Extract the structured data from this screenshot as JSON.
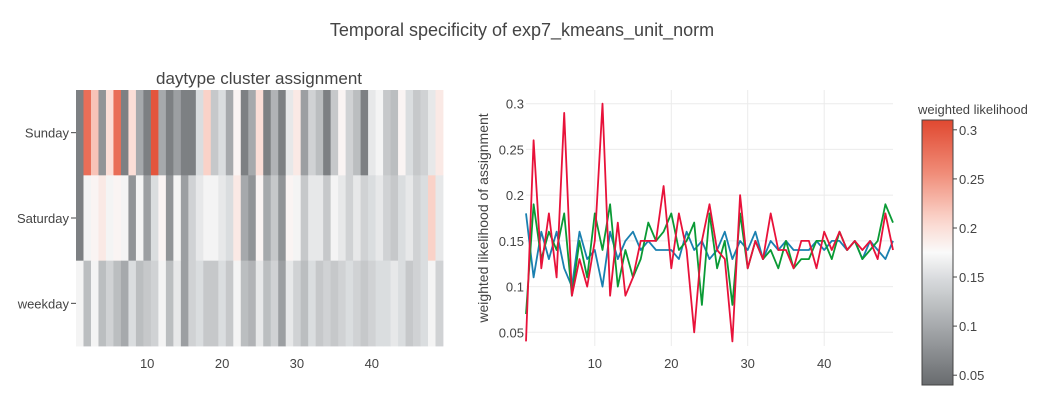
{
  "title": "Temporal specificity of exp7_kmeans_unit_norm",
  "chart_data": [
    {
      "type": "heatmap",
      "title": "daytype cluster assignment",
      "rows": [
        "weekday",
        "Saturday",
        "Sunday"
      ],
      "x_ticks": [
        10,
        20,
        30,
        40
      ],
      "xlim": [
        0.5,
        49.5
      ],
      "values": {
        "Sunday": [
          0.06,
          0.28,
          0.22,
          0.08,
          0.2,
          0.28,
          0.06,
          0.2,
          0.1,
          0.06,
          0.3,
          0.1,
          0.06,
          0.09,
          0.06,
          0.06,
          0.15,
          0.21,
          0.13,
          0.15,
          0.1,
          0.18,
          0.06,
          0.1,
          0.2,
          0.06,
          0.11,
          0.06,
          0.16,
          0.19,
          0.09,
          0.14,
          0.12,
          0.06,
          0.13,
          0.18,
          0.14,
          0.12,
          0.06,
          0.16,
          0.17,
          0.13,
          0.12,
          0.18,
          0.15,
          0.13,
          0.14,
          0.16,
          0.19
        ],
        "Saturday": [
          0.06,
          0.17,
          0.18,
          0.19,
          0.17,
          0.18,
          0.17,
          0.08,
          0.17,
          0.09,
          0.15,
          0.18,
          0.08,
          0.17,
          0.09,
          0.14,
          0.16,
          0.17,
          0.17,
          0.16,
          0.15,
          0.19,
          0.1,
          0.08,
          0.18,
          0.1,
          0.13,
          0.08,
          0.18,
          0.17,
          0.13,
          0.16,
          0.16,
          0.13,
          0.17,
          0.16,
          0.14,
          0.16,
          0.14,
          0.15,
          0.16,
          0.14,
          0.13,
          0.15,
          0.16,
          0.14,
          0.15,
          0.21,
          0.16
        ],
        "weekday": [
          0.17,
          0.12,
          0.17,
          0.12,
          0.14,
          0.12,
          0.1,
          0.15,
          0.12,
          0.13,
          0.14,
          0.17,
          0.12,
          0.16,
          0.09,
          0.14,
          0.15,
          0.13,
          0.13,
          0.15,
          0.13,
          0.17,
          0.12,
          0.11,
          0.16,
          0.12,
          0.14,
          0.09,
          0.16,
          0.14,
          0.12,
          0.15,
          0.13,
          0.14,
          0.13,
          0.14,
          0.15,
          0.14,
          0.13,
          0.14,
          0.15,
          0.15,
          0.16,
          0.15,
          0.13,
          0.14,
          0.15,
          0.17,
          0.14
        ]
      }
    },
    {
      "type": "line",
      "ylabel": "weighted likelihood of assignment",
      "x_ticks": [
        20,
        30,
        40
      ],
      "x_tick_labels_extra": [
        10
      ],
      "y_ticks": [
        0.05,
        0.1,
        0.15,
        0.2,
        0.25,
        0.3
      ],
      "xlim": [
        1,
        49
      ],
      "ylim": [
        0.035,
        0.315
      ],
      "grid": true,
      "series": [
        {
          "color": "#1a80b0",
          "values": [
            0.18,
            0.11,
            0.16,
            0.13,
            0.16,
            0.12,
            0.1,
            0.16,
            0.13,
            0.14,
            0.1,
            0.16,
            0.13,
            0.15,
            0.16,
            0.14,
            0.15,
            0.14,
            0.14,
            0.14,
            0.13,
            0.16,
            0.14,
            0.15,
            0.13,
            0.14,
            0.16,
            0.13,
            0.15,
            0.14,
            0.16,
            0.13,
            0.15,
            0.14,
            0.15,
            0.14,
            0.14,
            0.14,
            0.15,
            0.14,
            0.15,
            0.15,
            0.14,
            0.15,
            0.13,
            0.15,
            0.14,
            0.13,
            0.15
          ]
        },
        {
          "color": "#0a9a35",
          "values": [
            0.07,
            0.19,
            0.13,
            0.16,
            0.14,
            0.18,
            0.09,
            0.15,
            0.11,
            0.18,
            0.14,
            0.19,
            0.1,
            0.14,
            0.11,
            0.13,
            0.17,
            0.15,
            0.16,
            0.18,
            0.14,
            0.15,
            0.17,
            0.08,
            0.18,
            0.12,
            0.15,
            0.08,
            0.18,
            0.12,
            0.15,
            0.13,
            0.14,
            0.12,
            0.15,
            0.12,
            0.13,
            0.13,
            0.15,
            0.15,
            0.13,
            0.16,
            0.14,
            0.15,
            0.13,
            0.14,
            0.15,
            0.19,
            0.17
          ]
        },
        {
          "color": "#e8123a",
          "values": [
            0.04,
            0.26,
            0.12,
            0.18,
            0.11,
            0.29,
            0.09,
            0.13,
            0.1,
            0.15,
            0.3,
            0.09,
            0.17,
            0.09,
            0.11,
            0.15,
            0.15,
            0.15,
            0.21,
            0.12,
            0.18,
            0.14,
            0.05,
            0.15,
            0.19,
            0.14,
            0.13,
            0.04,
            0.2,
            0.12,
            0.15,
            0.13,
            0.18,
            0.14,
            0.14,
            0.12,
            0.15,
            0.15,
            0.12,
            0.16,
            0.14,
            0.16,
            0.14,
            0.15,
            0.14,
            0.15,
            0.13,
            0.18,
            0.14
          ]
        }
      ]
    },
    {
      "type": "colorbar",
      "title": "weighted likelihood",
      "ticks": [
        0.05,
        0.1,
        0.15,
        0.2,
        0.25,
        0.3
      ],
      "range": [
        0.04,
        0.31
      ]
    }
  ]
}
